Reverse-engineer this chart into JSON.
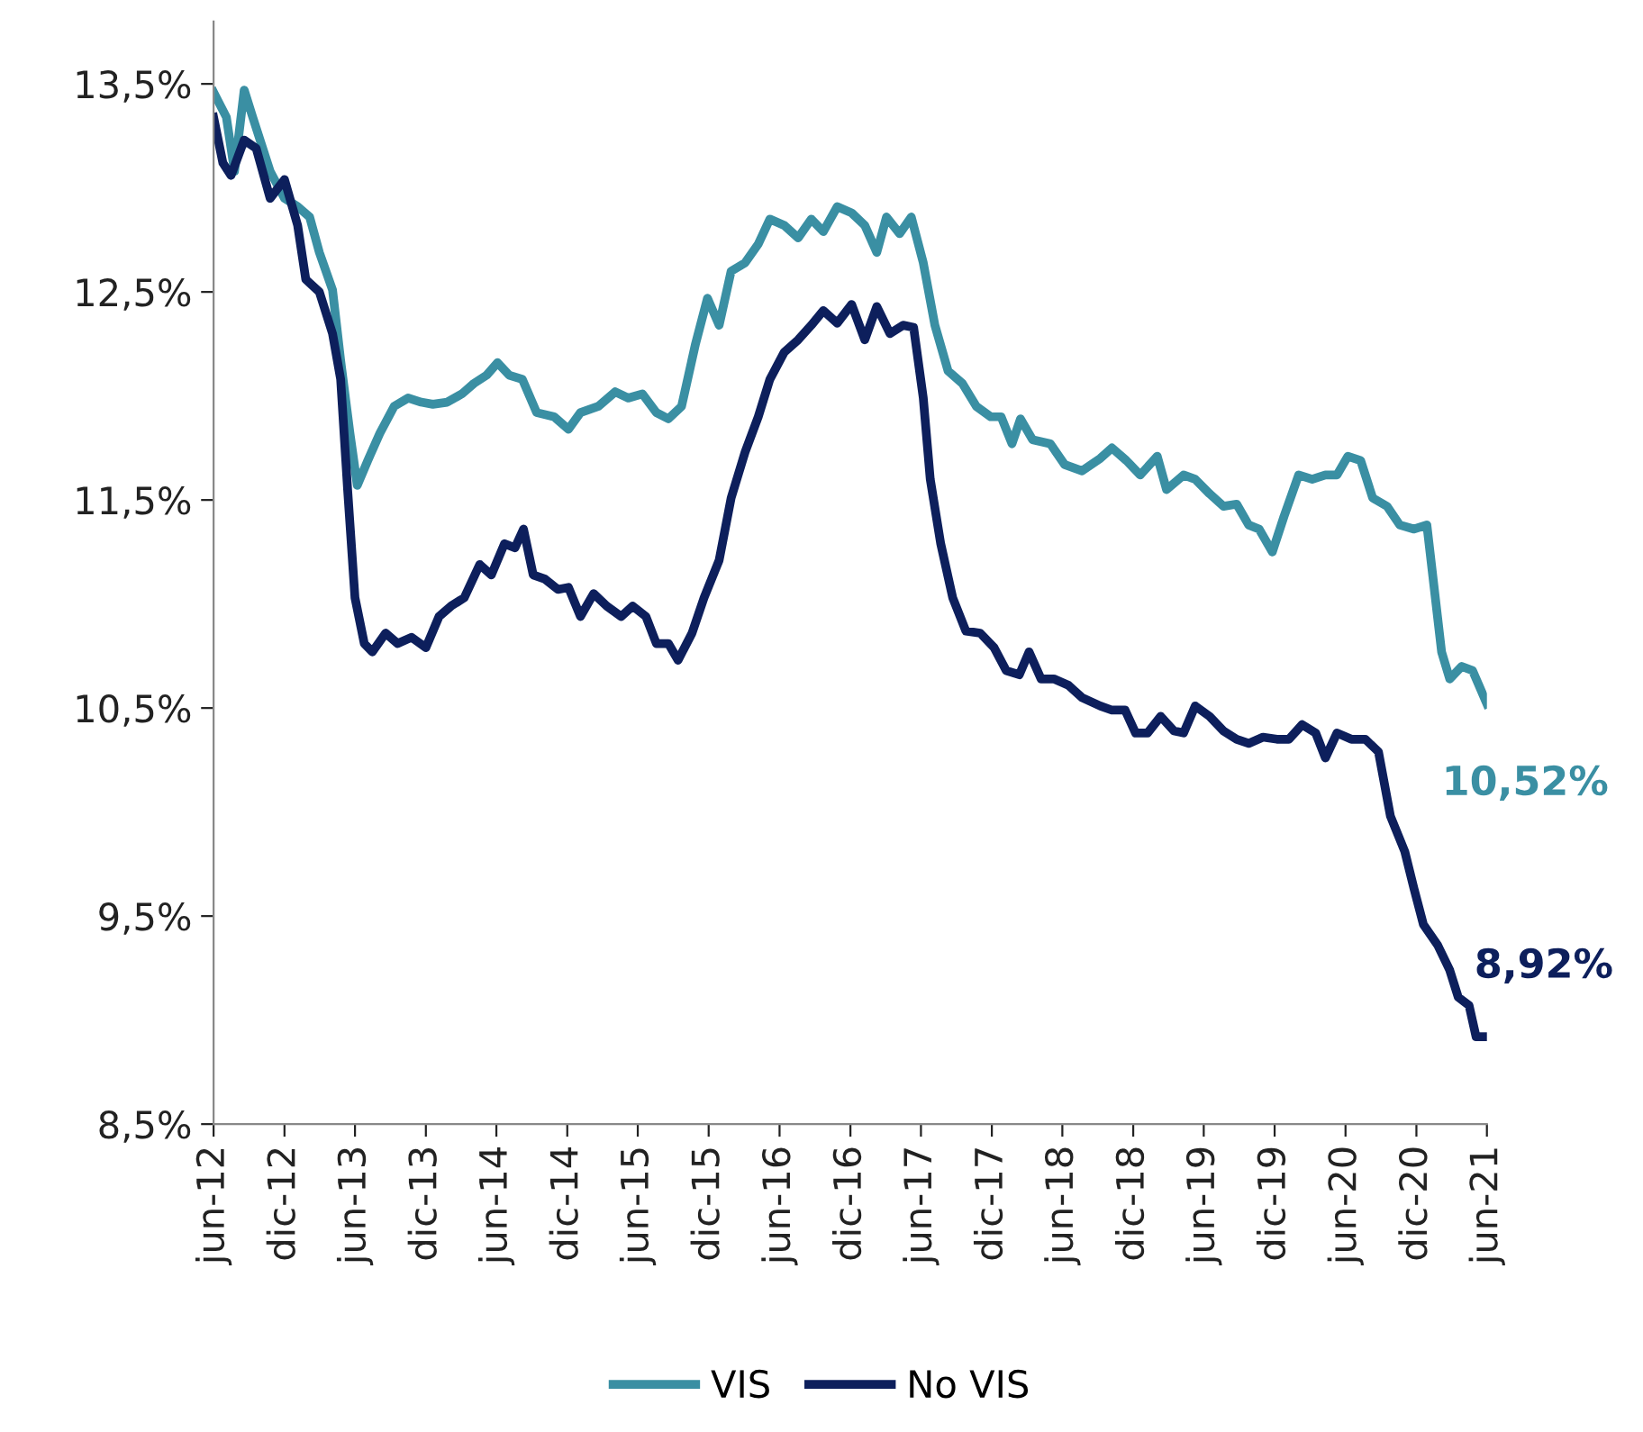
{
  "chart_data": {
    "type": "line",
    "series": [
      {
        "name": "VIS",
        "color": "#3a8fa3",
        "x": [
          "2012-06-01",
          "2012-07-04",
          "2012-07-25",
          "2012-08-19",
          "2012-09-10",
          "2012-10-25",
          "2012-12-01",
          "2013-01-04",
          "2013-02-04",
          "2013-03-01",
          "2013-04-04",
          "2013-04-25",
          "2013-05-19",
          "2013-06-07",
          "2013-07-04",
          "2013-08-04",
          "2013-09-10",
          "2013-10-16",
          "2013-11-19",
          "2013-12-19",
          "2014-01-25",
          "2014-03-04",
          "2014-04-04",
          "2014-05-07",
          "2014-06-04",
          "2014-07-04",
          "2014-08-07",
          "2014-09-13",
          "2014-10-28",
          "2014-12-04",
          "2015-01-04",
          "2015-02-19",
          "2015-04-04",
          "2015-05-07",
          "2015-06-13",
          "2015-07-19",
          "2015-08-19",
          "2015-09-22",
          "2015-10-28",
          "2015-11-28",
          "2015-12-28",
          "2016-01-28",
          "2016-03-04",
          "2016-04-07",
          "2016-05-07",
          "2016-06-13",
          "2016-07-19",
          "2016-08-22",
          "2016-09-22",
          "2016-10-28",
          "2016-12-04",
          "2017-01-07",
          "2017-02-07",
          "2017-03-04",
          "2017-04-07",
          "2017-05-07",
          "2017-06-07",
          "2017-07-07",
          "2017-08-10",
          "2017-09-16",
          "2017-10-22",
          "2017-11-28",
          "2017-12-25",
          "2018-01-22",
          "2018-02-13",
          "2018-03-16",
          "2018-05-01",
          "2018-06-07",
          "2018-07-22",
          "2018-09-07",
          "2018-10-07",
          "2018-11-13",
          "2018-12-19",
          "2019-02-01",
          "2019-02-25",
          "2019-04-10",
          "2019-05-10",
          "2019-06-16",
          "2019-07-22",
          "2019-08-25",
          "2019-09-25",
          "2019-10-22",
          "2019-11-25",
          "2019-12-25",
          "2020-02-01",
          "2020-03-07",
          "2020-04-10",
          "2020-05-10",
          "2020-06-07",
          "2020-07-10",
          "2020-08-10",
          "2020-09-16",
          "2020-10-19",
          "2020-11-25",
          "2020-12-28",
          "2021-02-04",
          "2021-02-25",
          "2021-03-28",
          "2021-04-25",
          "2021-06-01"
        ],
        "values": [
          13.46,
          13.34,
          13.08,
          13.47,
          13.34,
          13.08,
          12.95,
          12.91,
          12.86,
          12.69,
          12.51,
          12.17,
          11.82,
          11.57,
          11.69,
          11.82,
          11.95,
          11.99,
          11.97,
          11.96,
          11.97,
          12.01,
          12.06,
          12.1,
          12.16,
          12.1,
          12.08,
          11.92,
          11.9,
          11.84,
          11.92,
          11.95,
          12.02,
          11.99,
          12.01,
          11.92,
          11.89,
          11.95,
          12.25,
          12.47,
          12.34,
          12.6,
          12.64,
          12.73,
          12.85,
          12.82,
          12.76,
          12.85,
          12.79,
          12.91,
          12.88,
          12.82,
          12.69,
          12.86,
          12.78,
          12.86,
          12.64,
          12.34,
          12.12,
          12.06,
          11.95,
          11.9,
          11.9,
          11.77,
          11.89,
          11.79,
          11.77,
          11.67,
          11.64,
          11.7,
          11.75,
          11.69,
          11.62,
          11.71,
          11.55,
          11.62,
          11.6,
          11.53,
          11.47,
          11.48,
          11.38,
          11.36,
          11.25,
          11.42,
          11.62,
          11.6,
          11.62,
          11.62,
          11.71,
          11.69,
          11.51,
          11.47,
          11.38,
          11.36,
          11.38,
          10.77,
          10.64,
          10.7,
          10.68,
          10.52
        ]
      },
      {
        "name": "No VIS",
        "color": "#0d1f5c",
        "x": [
          "2012-06-01",
          "2012-06-25",
          "2012-07-16",
          "2012-08-19",
          "2012-09-19",
          "2012-10-25",
          "2012-12-01",
          "2013-01-04",
          "2013-01-25",
          "2013-03-01",
          "2013-04-04",
          "2013-04-25",
          "2013-05-13",
          "2013-06-01",
          "2013-06-25",
          "2013-07-16",
          "2013-08-19",
          "2013-09-19",
          "2013-10-25",
          "2013-12-01",
          "2014-01-04",
          "2014-02-04",
          "2014-03-10",
          "2014-04-19",
          "2014-05-19",
          "2014-06-22",
          "2014-07-19",
          "2014-08-10",
          "2014-09-04",
          "2014-10-04",
          "2014-11-07",
          "2014-12-04",
          "2015-01-04",
          "2015-02-07",
          "2015-03-13",
          "2015-04-19",
          "2015-05-19",
          "2015-06-22",
          "2015-07-19",
          "2015-08-19",
          "2015-09-13",
          "2015-10-19",
          "2015-11-19",
          "2015-12-28",
          "2016-01-28",
          "2016-03-04",
          "2016-04-07",
          "2016-05-07",
          "2016-06-13",
          "2016-07-19",
          "2016-08-22",
          "2016-09-22",
          "2016-10-28",
          "2016-12-04",
          "2017-01-07",
          "2017-02-07",
          "2017-03-13",
          "2017-04-16",
          "2017-05-13",
          "2017-06-07",
          "2017-06-25",
          "2017-07-22",
          "2017-08-22",
          "2017-09-25",
          "2017-11-01",
          "2017-12-07",
          "2018-01-07",
          "2018-02-10",
          "2018-03-07",
          "2018-04-07",
          "2018-05-10",
          "2018-06-16",
          "2018-07-22",
          "2018-09-07",
          "2018-10-07",
          "2018-11-10",
          "2018-12-07",
          "2019-01-07",
          "2019-02-10",
          "2019-03-16",
          "2019-04-10",
          "2019-05-10",
          "2019-06-16",
          "2019-07-22",
          "2019-08-25",
          "2019-09-25",
          "2019-11-01",
          "2019-12-07",
          "2020-01-07",
          "2020-02-10",
          "2020-03-16",
          "2020-04-10",
          "2020-05-10",
          "2020-06-16",
          "2020-07-22",
          "2020-08-25",
          "2020-09-25",
          "2020-11-01",
          "2020-11-25",
          "2020-12-19",
          "2021-01-25",
          "2021-02-25",
          "2021-03-19",
          "2021-04-16",
          "2021-05-04",
          "2021-06-01"
        ],
        "values": [
          13.34,
          13.12,
          13.06,
          13.23,
          13.19,
          12.95,
          13.04,
          12.82,
          12.56,
          12.5,
          12.3,
          12.08,
          11.55,
          11.03,
          10.81,
          10.77,
          10.86,
          10.81,
          10.84,
          10.79,
          10.94,
          10.99,
          11.03,
          11.19,
          11.14,
          11.29,
          11.27,
          11.36,
          11.14,
          11.12,
          11.07,
          11.08,
          10.94,
          11.05,
          10.99,
          10.94,
          10.99,
          10.94,
          10.81,
          10.81,
          10.73,
          10.86,
          11.03,
          11.21,
          11.51,
          11.73,
          11.9,
          12.08,
          12.21,
          12.27,
          12.34,
          12.41,
          12.35,
          12.44,
          12.27,
          12.43,
          12.3,
          12.34,
          12.33,
          11.99,
          11.6,
          11.29,
          11.03,
          10.87,
          10.86,
          10.79,
          10.68,
          10.66,
          10.77,
          10.64,
          10.64,
          10.61,
          10.55,
          10.51,
          10.49,
          10.49,
          10.38,
          10.38,
          10.46,
          10.39,
          10.38,
          10.51,
          10.46,
          10.39,
          10.35,
          10.33,
          10.36,
          10.35,
          10.35,
          10.42,
          10.38,
          10.26,
          10.38,
          10.35,
          10.35,
          10.29,
          9.98,
          9.81,
          9.63,
          9.46,
          9.36,
          9.24,
          9.11,
          9.07,
          8.92,
          8.92
        ]
      }
    ],
    "xlim": [
      "2012-06-01",
      "2021-06-01"
    ],
    "xticks": [
      {
        "value": "2012-06-01",
        "label": "jun-12"
      },
      {
        "value": "2012-12-01",
        "label": "dic-12"
      },
      {
        "value": "2013-06-01",
        "label": "jun-13"
      },
      {
        "value": "2013-12-01",
        "label": "dic-13"
      },
      {
        "value": "2014-06-01",
        "label": "jun-14"
      },
      {
        "value": "2014-12-01",
        "label": "dic-14"
      },
      {
        "value": "2015-06-01",
        "label": "jun-15"
      },
      {
        "value": "2015-12-01",
        "label": "dic-15"
      },
      {
        "value": "2016-06-01",
        "label": "jun-16"
      },
      {
        "value": "2016-12-01",
        "label": "dic-16"
      },
      {
        "value": "2017-06-01",
        "label": "jun-17"
      },
      {
        "value": "2017-12-01",
        "label": "dic-17"
      },
      {
        "value": "2018-06-01",
        "label": "jun-18"
      },
      {
        "value": "2018-12-01",
        "label": "dic-18"
      },
      {
        "value": "2019-06-01",
        "label": "jun-19"
      },
      {
        "value": "2019-12-01",
        "label": "dic-19"
      },
      {
        "value": "2020-06-01",
        "label": "jun-20"
      },
      {
        "value": "2020-12-01",
        "label": "dic-20"
      },
      {
        "value": "2021-06-01",
        "label": "jun-21"
      }
    ],
    "ylim": [
      8.5,
      13.8
    ],
    "yticks": [
      {
        "value": 8.5,
        "label": "8,5%"
      },
      {
        "value": 9.5,
        "label": "9,5%"
      },
      {
        "value": 10.5,
        "label": "10,5%"
      },
      {
        "value": 11.5,
        "label": "11,5%"
      },
      {
        "value": 12.5,
        "label": "12,5%"
      },
      {
        "value": 13.5,
        "label": "13,5%"
      }
    ],
    "annotations": [
      {
        "text": "10,52%",
        "x": "2021-06-01",
        "y": 10.52
      },
      {
        "text": "8,92%",
        "x": "2021-06-01",
        "y": 8.92
      }
    ],
    "grid": false,
    "legend": "bottom",
    "marker": "none",
    "line_style": "solid"
  }
}
